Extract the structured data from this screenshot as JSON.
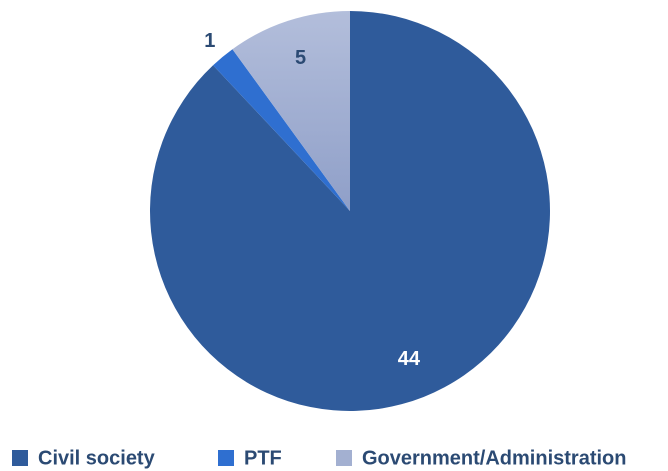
{
  "chart_data": {
    "type": "pie",
    "categories": [
      "Civil society",
      "PTF",
      "Government/Administration"
    ],
    "values": [
      44,
      1,
      5
    ],
    "colors": [
      "#2f5b9b",
      "#2f6fd0",
      "#a3b0d1"
    ],
    "legend": "bottom"
  }
}
